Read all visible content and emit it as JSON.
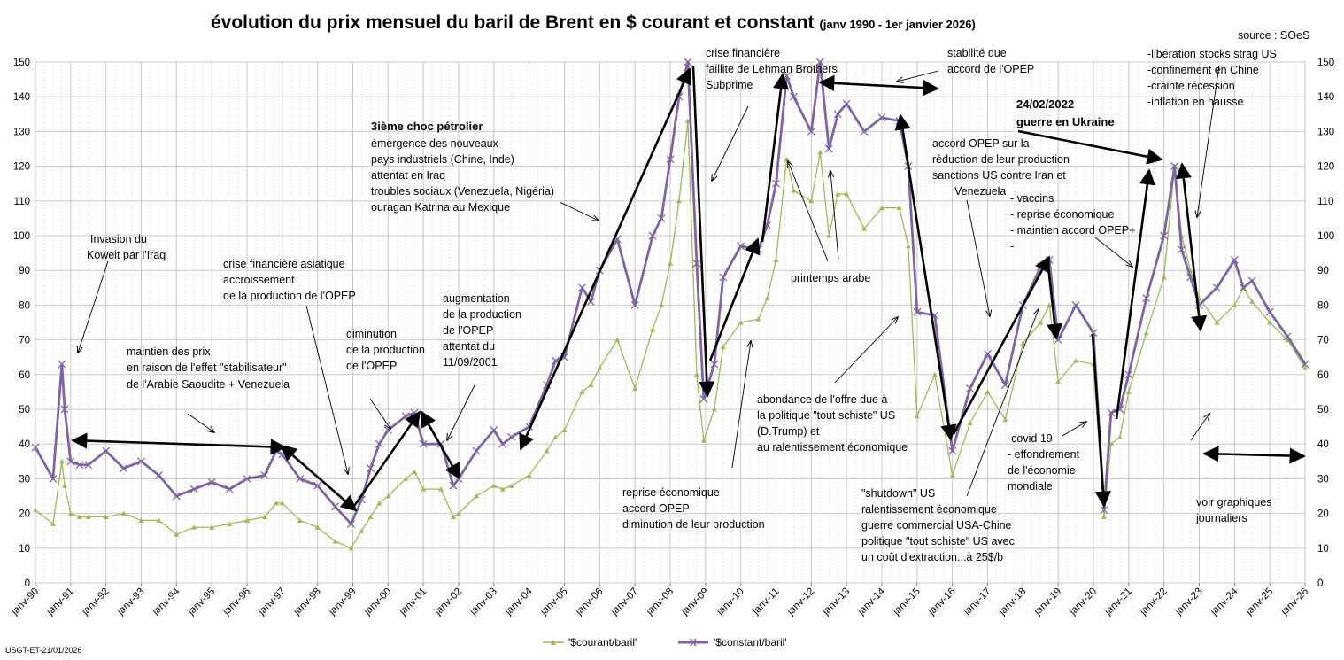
{
  "chart_data": {
    "type": "line",
    "title": "évolution du prix mensuel du baril de Brent en $ courant et constant",
    "subtitle": "(janv 1990 -  1er janvier 2026)",
    "source": "source : SOeS",
    "footer": "USGT-ET-21/01/2026",
    "ylim": [
      0,
      150
    ],
    "yticks": [
      "0",
      "10",
      "20",
      "30",
      "40",
      "50",
      "60",
      "70",
      "80",
      "90",
      "100",
      "110",
      "120",
      "130",
      "140",
      "150"
    ],
    "categories": [
      "janv-90",
      "janv-91",
      "janv-92",
      "janv-93",
      "janv-94",
      "janv-95",
      "janv-96",
      "janv-97",
      "janv-98",
      "janv-99",
      "janv-00",
      "janv-01",
      "janv-02",
      "janv-03",
      "janv-04",
      "janv-05",
      "janv-06",
      "janv-07",
      "janv-08",
      "janv-09",
      "janv-10",
      "janv-11",
      "janv-12",
      "janv-13",
      "janv-14",
      "janv-15",
      "janv-16",
      "janv-17",
      "janv-18",
      "janv-19",
      "janv-20",
      "janv-21",
      "janv-22",
      "janv-23",
      "janv-24",
      "janv-25",
      "janv-26"
    ],
    "series": [
      {
        "name": "'$courant/baril'",
        "color": "#9bbb59",
        "x": [
          1990.0,
          1990.5,
          1990.75,
          1990.83,
          1991.0,
          1991.25,
          1991.5,
          1992.0,
          1992.5,
          1993.0,
          1993.5,
          1994.0,
          1994.5,
          1995.0,
          1995.5,
          1996.0,
          1996.5,
          1996.83,
          1997.0,
          1997.5,
          1998.0,
          1998.5,
          1998.95,
          1999.25,
          1999.5,
          1999.75,
          2000.0,
          2000.5,
          2000.75,
          2001.0,
          2001.5,
          2001.85,
          2002.0,
          2002.5,
          2003.0,
          2003.25,
          2003.5,
          2004.0,
          2004.5,
          2004.75,
          2005.0,
          2005.5,
          2005.75,
          2006.0,
          2006.5,
          2007.0,
          2007.5,
          2007.75,
          2008.0,
          2008.25,
          2008.5,
          2008.75,
          2008.95,
          2009.25,
          2009.5,
          2010.0,
          2010.5,
          2010.75,
          2011.0,
          2011.3,
          2011.5,
          2012.0,
          2012.25,
          2012.5,
          2012.75,
          2013.0,
          2013.5,
          2014.0,
          2014.5,
          2014.75,
          2015.0,
          2015.5,
          2016.0,
          2016.5,
          2017.0,
          2017.5,
          2018.0,
          2018.5,
          2018.75,
          2019.0,
          2019.5,
          2020.0,
          2020.3,
          2020.5,
          2020.75,
          2021.0,
          2021.5,
          2022.0,
          2022.3,
          2022.5,
          2022.75,
          2023.0,
          2023.5,
          2024.0,
          2024.25,
          2024.5,
          2025.0,
          2025.5,
          2026.0
        ],
        "values": [
          21,
          17,
          35,
          28,
          20,
          19,
          19,
          19,
          20,
          18,
          18,
          14,
          16,
          16,
          17,
          18,
          19,
          23,
          23,
          18,
          16,
          12,
          10,
          15,
          19,
          23,
          25,
          30,
          32,
          27,
          27,
          19,
          20,
          25,
          28,
          27,
          28,
          31,
          38,
          42,
          44,
          55,
          57,
          62,
          70,
          56,
          73,
          80,
          92,
          110,
          133,
          60,
          41,
          50,
          68,
          75,
          76,
          82,
          93,
          122,
          113,
          110,
          124,
          100,
          112,
          112,
          102,
          108,
          108,
          97,
          48,
          60,
          31,
          46,
          55,
          47,
          69,
          75,
          80,
          58,
          64,
          63,
          19,
          40,
          42,
          55,
          72,
          88,
          120,
          100,
          90,
          82,
          75,
          80,
          85,
          81,
          75,
          70,
          62
        ]
      },
      {
        "name": "'$constant/baril'",
        "color": "#8064a2",
        "x": [
          1990.0,
          1990.5,
          1990.75,
          1990.83,
          1991.0,
          1991.25,
          1991.5,
          1992.0,
          1992.5,
          1993.0,
          1993.5,
          1994.0,
          1994.5,
          1995.0,
          1995.5,
          1996.0,
          1996.5,
          1996.83,
          1997.0,
          1997.5,
          1998.0,
          1998.5,
          1998.95,
          1999.25,
          1999.5,
          1999.75,
          2000.0,
          2000.5,
          2000.75,
          2001.0,
          2001.5,
          2001.85,
          2002.0,
          2002.5,
          2003.0,
          2003.25,
          2003.5,
          2004.0,
          2004.5,
          2004.75,
          2005.0,
          2005.5,
          2005.75,
          2006.0,
          2006.5,
          2007.0,
          2007.5,
          2007.75,
          2008.0,
          2008.25,
          2008.5,
          2008.75,
          2008.95,
          2009.25,
          2009.5,
          2010.0,
          2010.5,
          2010.75,
          2011.0,
          2011.3,
          2011.5,
          2012.0,
          2012.25,
          2012.5,
          2012.75,
          2013.0,
          2013.5,
          2014.0,
          2014.5,
          2014.75,
          2015.0,
          2015.5,
          2016.0,
          2016.5,
          2017.0,
          2017.5,
          2018.0,
          2018.5,
          2018.75,
          2019.0,
          2019.5,
          2020.0,
          2020.3,
          2020.5,
          2020.75,
          2021.0,
          2021.5,
          2022.0,
          2022.3,
          2022.5,
          2022.75,
          2023.0,
          2023.5,
          2024.0,
          2024.25,
          2024.5,
          2025.0,
          2025.5,
          2026.0
        ],
        "values": [
          39,
          30,
          63,
          50,
          35,
          34,
          34,
          38,
          33,
          35,
          31,
          25,
          27,
          29,
          27,
          30,
          31,
          38,
          37,
          30,
          28,
          22,
          17,
          24,
          33,
          40,
          44,
          48,
          49,
          40,
          40,
          28,
          30,
          38,
          44,
          40,
          42,
          45,
          57,
          64,
          65,
          85,
          81,
          90,
          99,
          80,
          100,
          105,
          122,
          140,
          152,
          92,
          53,
          63,
          88,
          97,
          96,
          103,
          115,
          146,
          140,
          130,
          150,
          125,
          135,
          138,
          130,
          134,
          133,
          120,
          78,
          77,
          38,
          56,
          66,
          57,
          80,
          91,
          93,
          70,
          80,
          72,
          21,
          49,
          50,
          60,
          82,
          100,
          120,
          96,
          88,
          80,
          85,
          93,
          85,
          87,
          78,
          71,
          63
        ]
      }
    ],
    "legend": [
      "'$courant/baril'",
      "'$constant/baril'"
    ],
    "annotations": {
      "invasion": [
        "Invasion  du",
        "Koweit par l'Iraq"
      ],
      "maintien": [
        "maintien des prix",
        "en raison de l'effet \"stabilisateur\"",
        "de l'Arabie Saoudite + Venezuela"
      ],
      "asiatique": [
        "crise financière asiatique",
        "accroissement",
        "de la production de l'OPEP"
      ],
      "diminution": [
        "diminution",
        "de la production",
        "de l'OPEP"
      ],
      "augmentation": [
        "augmentation",
        "de la production",
        "de l'OPEP",
        "attentat du",
        "11/09/2001"
      ],
      "choc_title": "3ième choc pétrolier",
      "choc": [
        "émergence des nouveaux",
        "pays industriels (Chine, Inde)",
        "attentat en Iraq",
        "troubles  sociaux (Venezuela, Nigéria)",
        "ouragan Katrina au Mexique"
      ],
      "crise": [
        "crise financière",
        "faillite de Lehman Brothers",
        "Subprime"
      ],
      "stabilite": [
        "stabilité due",
        "accord de l'OPEP"
      ],
      "printemps": "printemps  arabe",
      "reprise": [
        "reprise économique",
        "accord OPEP",
        "diminution de leur production"
      ],
      "abondance": [
        "abondance de l'offre due à",
        "la politique \"tout schiste\" US",
        "(D.Trump) et",
        "au ralentissement économique"
      ],
      "accord_opep": [
        "accord OPEP sur la",
        "réduction  de leur production",
        "sanctions US contre Iran et",
        "Venezuela"
      ],
      "shutdown": [
        "\"shutdown\" US",
        "ralentissement économique",
        "guerre commercial USA-Chine",
        "politique \"tout schiste\" US avec",
        "un coût d'extraction...à 25$/b"
      ],
      "covid": [
        "-covid 19",
        "- effondrement",
        "de l'économie",
        "mondiale"
      ],
      "vaccins": [
        "- vaccins",
        "- reprise économique",
        "- maintien accord OPEP+",
        "-"
      ],
      "ukraine": [
        "24/02/2022",
        "guerre en Ukraine"
      ],
      "liberation": [
        "-libération  stocks strag US",
        "-confinement en Chine",
        "-crainte récession",
        "-inflation en hausse"
      ],
      "voir": [
        "voir graphiques",
        "journaliers"
      ]
    }
  }
}
